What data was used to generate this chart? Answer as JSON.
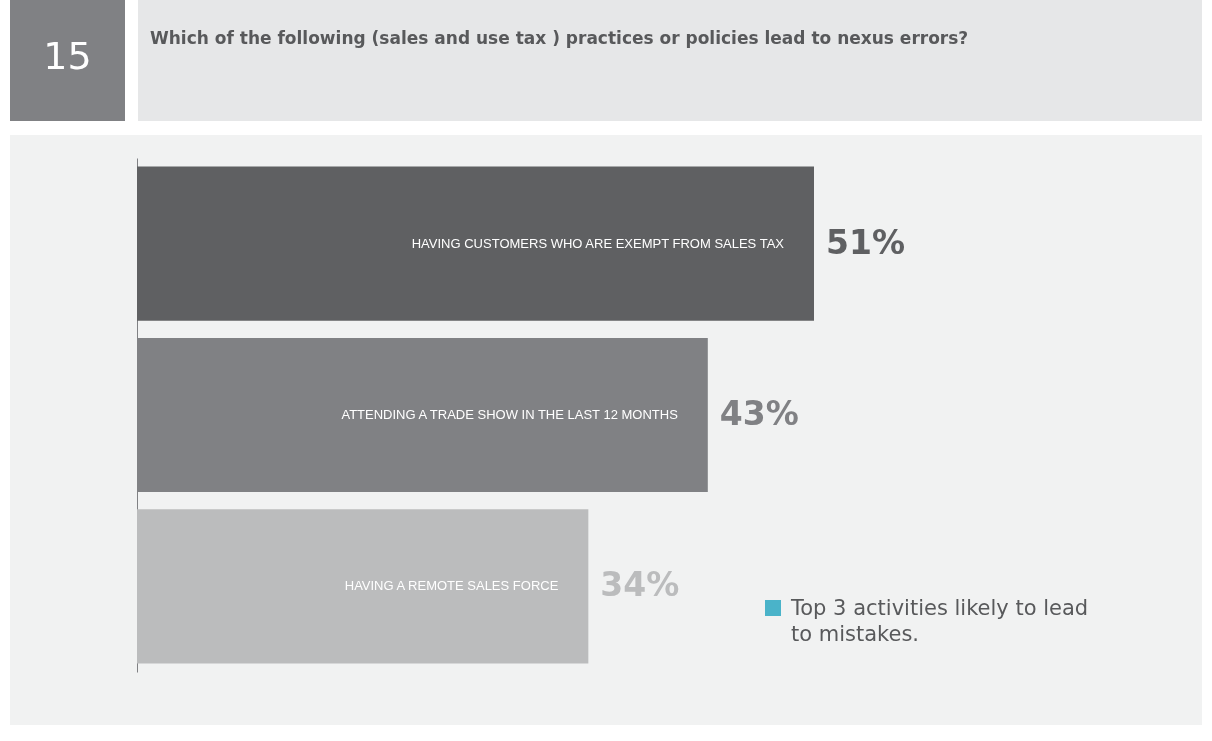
{
  "chart_data": {
    "type": "bar",
    "orientation": "horizontal",
    "title": "Which of the following (sales and use tax ) practices or policies lead to nexus errors?",
    "categories": [
      "HAVING CUSTOMERS WHO ARE EXEMPT FROM SALES TAX",
      "ATTENDING A TRADE SHOW IN THE LAST 12 MONTHS",
      "HAVING A REMOTE SALES FORCE"
    ],
    "values": [
      51,
      43,
      34
    ],
    "value_labels": [
      "51%",
      "43%",
      "34%"
    ],
    "colors": [
      "#5f6062",
      "#808184",
      "#bbbcbd"
    ],
    "annotations": [
      "15",
      "Top 3 activities likely to lead to mistakes."
    ]
  }
}
